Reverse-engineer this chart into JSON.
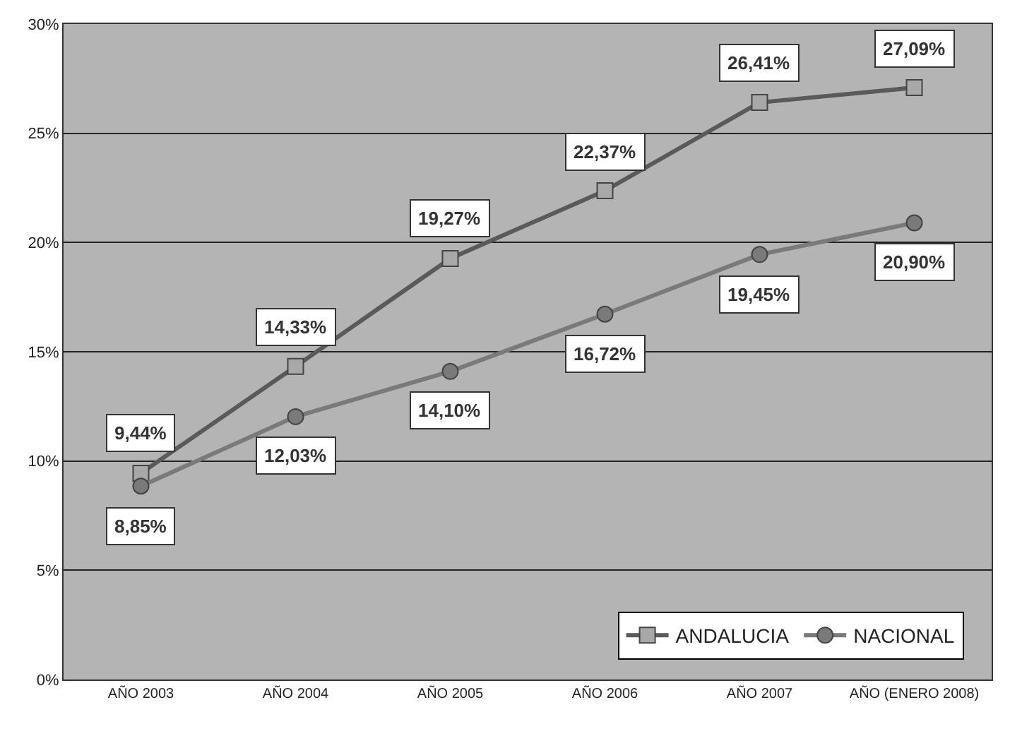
{
  "chart_data": {
    "type": "line",
    "categories": [
      "AÑO 2003",
      "AÑO 2004",
      "AÑO 2005",
      "AÑO 2006",
      "AÑO 2007",
      "AÑO (ENERO 2008)"
    ],
    "series": [
      {
        "name": "ANDALUCIA",
        "color": "#5a5a5a",
        "marker": "square",
        "values": [
          9.44,
          14.33,
          19.27,
          22.37,
          26.41,
          27.09
        ],
        "value_labels": [
          "9,44%",
          "14,33%",
          "19,27%",
          "22,37%",
          "26,41%",
          "27,09%"
        ]
      },
      {
        "name": "NACIONAL",
        "color": "#7a7a7a",
        "marker": "circle",
        "values": [
          8.85,
          12.03,
          14.1,
          16.72,
          19.45,
          20.9
        ],
        "value_labels": [
          "8,85%",
          "12,03%",
          "14,10%",
          "16,72%",
          "19,45%",
          "20,90%"
        ]
      }
    ],
    "ylim": [
      0,
      30
    ],
    "yticks": [
      {
        "value": 0,
        "label": "0%"
      },
      {
        "value": 5,
        "label": "5%"
      },
      {
        "value": 10,
        "label": "10%"
      },
      {
        "value": 15,
        "label": "15%"
      },
      {
        "value": 20,
        "label": "20%"
      },
      {
        "value": 25,
        "label": "25%"
      },
      {
        "value": 30,
        "label": "30%"
      }
    ],
    "grid": "y",
    "legend": "bottom right",
    "line_style": "solid"
  }
}
